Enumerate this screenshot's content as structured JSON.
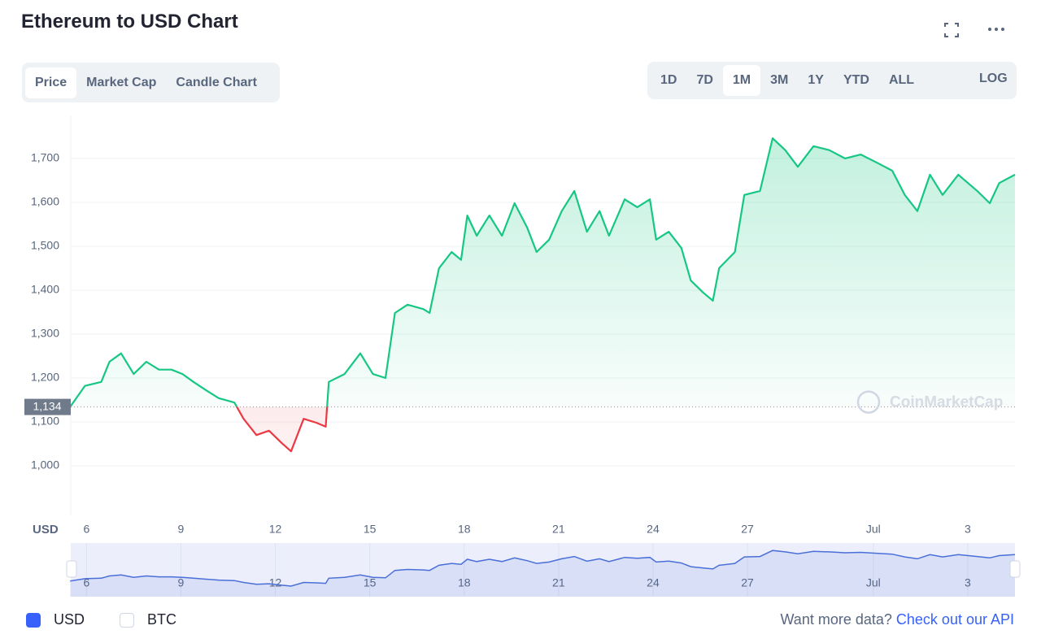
{
  "header": {
    "title": "Ethereum to USD Chart"
  },
  "tabs": [
    "Price",
    "Market Cap",
    "Candle Chart"
  ],
  "ranges": [
    "1D",
    "7D",
    "1M",
    "3M",
    "1Y",
    "YTD",
    "ALL"
  ],
  "log": "LOG",
  "chart_data": {
    "type": "line",
    "x": [
      5.48,
      5.95,
      6.47,
      6.73,
      7.1,
      7.5,
      7.9,
      8.3,
      8.7,
      9.05,
      9.4,
      9.8,
      10.2,
      10.7,
      10.99,
      11.4,
      11.8,
      12.2,
      12.5,
      12.9,
      13.3,
      13.6,
      13.7,
      14.2,
      14.7,
      15.1,
      15.5,
      15.8,
      16.2,
      16.7,
      16.9,
      17.2,
      17.6,
      17.9,
      18.1,
      18.4,
      18.8,
      19.2,
      19.6,
      20.0,
      20.3,
      20.7,
      21.1,
      21.5,
      21.9,
      22.3,
      22.6,
      23.1,
      23.5,
      23.9,
      24.1,
      24.5,
      24.9,
      25.2,
      25.6,
      25.9,
      26.1,
      26.6,
      26.9,
      27.4,
      27.8,
      28.2,
      28.6,
      29.1,
      29.6,
      30.1,
      30.6,
      31.1,
      31.6,
      32.0,
      32.4,
      32.8,
      33.2,
      33.7,
      34.3,
      34.7,
      35.0,
      35.5
    ],
    "series": [
      {
        "name": "USD",
        "color": "#16c784",
        "values": [
          1134,
          1182,
          1191,
          1237,
          1256,
          1209,
          1237,
          1219,
          1219,
          1209,
          1191,
          1172,
          1154,
          1144,
          1107,
          1070,
          1080,
          1052,
          1033,
          1107,
          1098,
          1089,
          1191,
          1209,
          1256,
          1209,
          1200,
          1348,
          1367,
          1357,
          1348,
          1450,
          1487,
          1469,
          1570,
          1524,
          1570,
          1524,
          1598,
          1543,
          1487,
          1515,
          1580,
          1626,
          1533,
          1580,
          1524,
          1607,
          1589,
          1607,
          1515,
          1533,
          1496,
          1422,
          1394,
          1376,
          1450,
          1487,
          1617,
          1626,
          1746,
          1719,
          1681,
          1728,
          1719,
          1700,
          1709,
          1691,
          1672,
          1617,
          1580,
          1663,
          1617,
          1663,
          1626,
          1598,
          1644,
          1663
        ]
      }
    ],
    "down_color": "#ea3943",
    "navigator_color": "#4a6fd8",
    "baseline": {
      "value": 1134,
      "label": "1,134"
    },
    "xlim": [
      5.5,
      35.5
    ],
    "xticks": [
      6,
      9,
      12,
      15,
      18,
      21,
      24,
      27,
      {
        "value": 31,
        "label": "Jul"
      },
      {
        "value": 34,
        "label": "3"
      }
    ],
    "ylim": [
      887,
      1798
    ],
    "yticks": [
      {
        "value": 1000,
        "label": "1,000"
      },
      {
        "value": 1100,
        "label": "1,100"
      },
      {
        "value": 1200,
        "label": "1,200"
      },
      {
        "value": 1300,
        "label": "1,300"
      },
      {
        "value": 1400,
        "label": "1,400"
      },
      {
        "value": 1500,
        "label": "1,500"
      },
      {
        "value": 1600,
        "label": "1,600"
      },
      {
        "value": 1700,
        "label": "1,700"
      }
    ],
    "grid": true,
    "axis_unit": "USD",
    "watermark": "CoinMarketCap"
  },
  "footer": {
    "checkboxes": [
      "USD",
      "BTC"
    ],
    "prompt": "Want more data?",
    "link": "Check out our API"
  }
}
